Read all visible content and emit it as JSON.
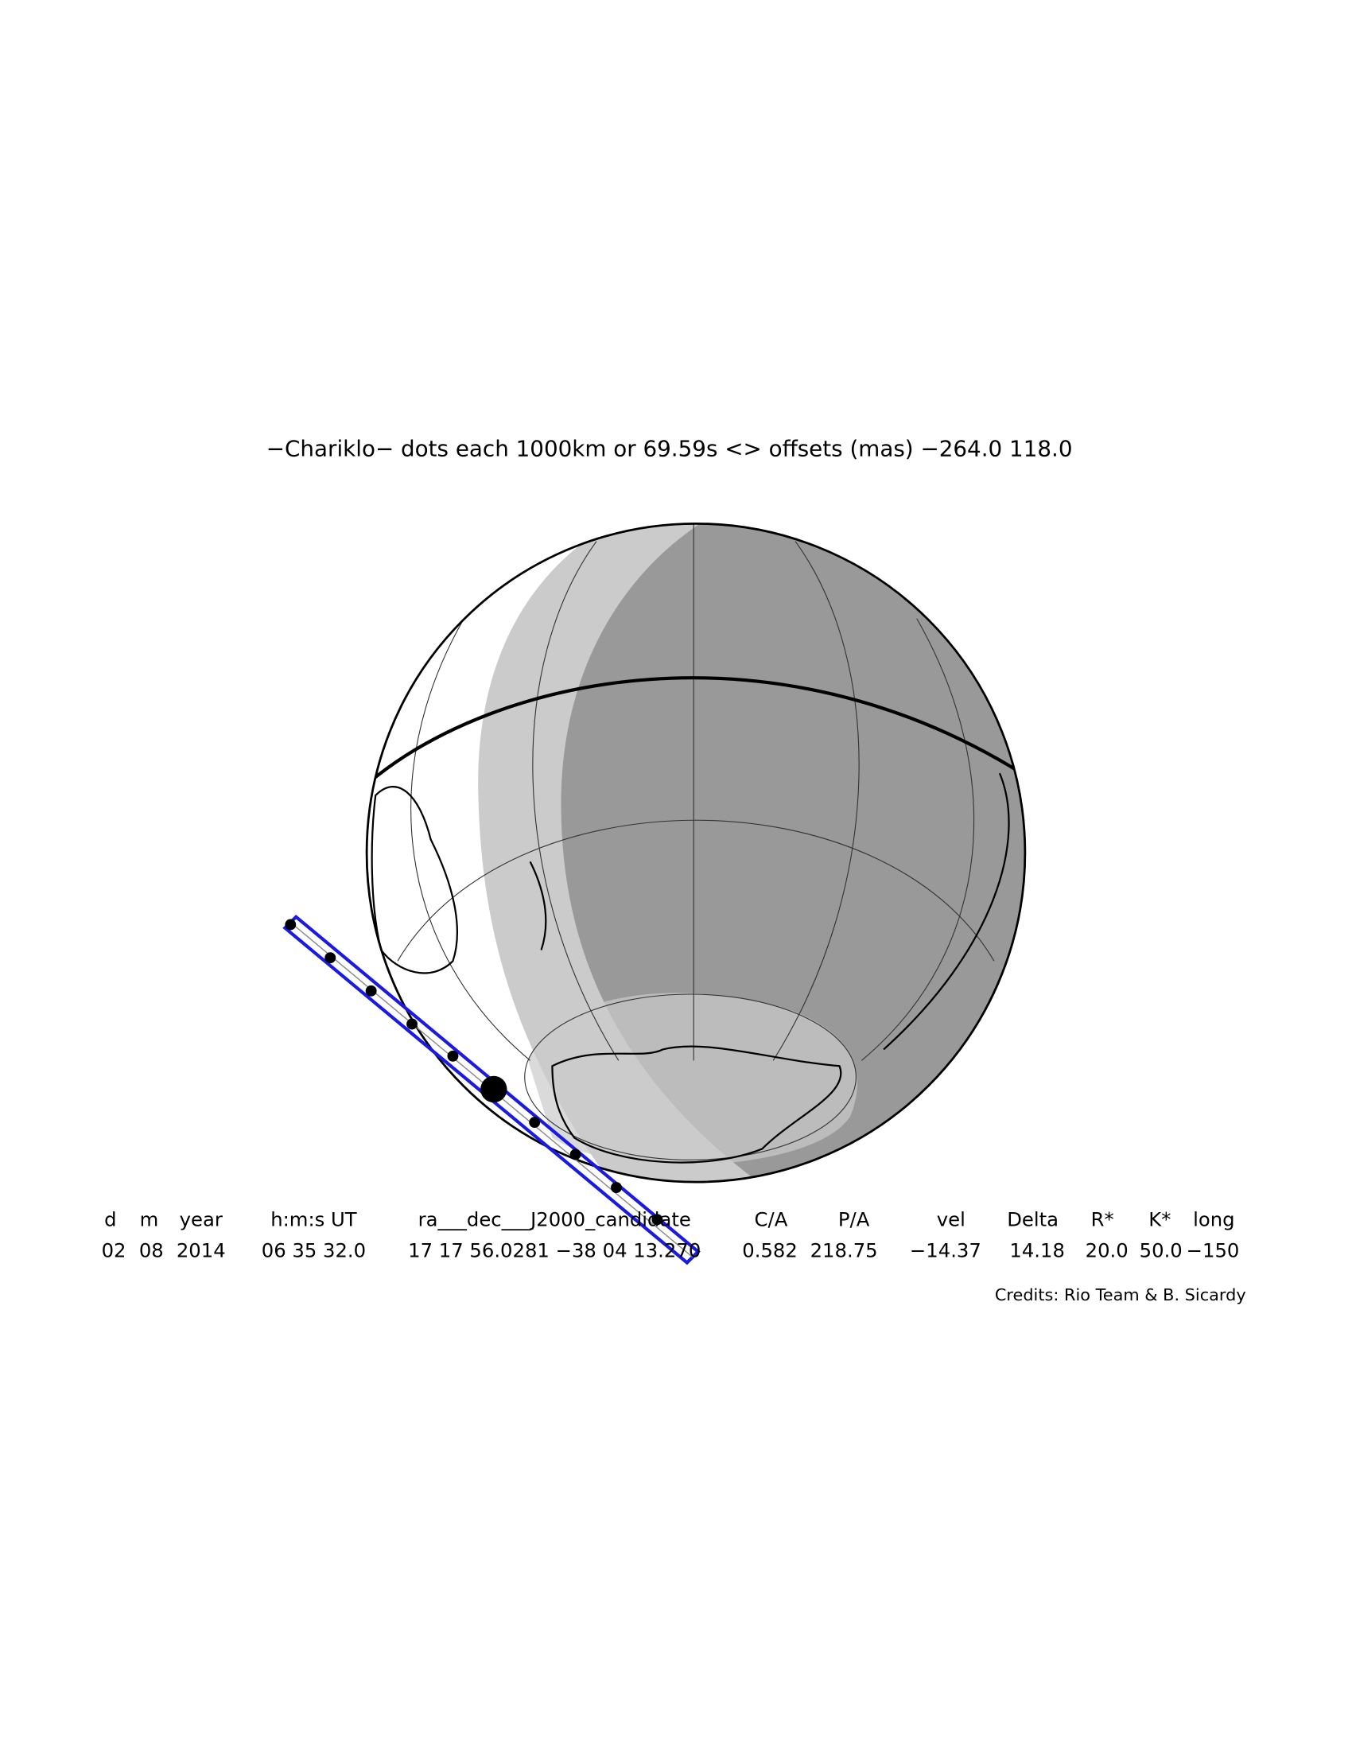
{
  "title": "−Chariklo− dots each 1000km or 69.59s <> offsets (mas) −264.0  118.0",
  "table": {
    "headers": [
      "d",
      "m",
      "year",
      "h:m:s UT",
      "ra___dec___J2000_candidate",
      "C/A",
      "P/A",
      "vel",
      "Delta",
      "R*",
      "K*",
      "long"
    ],
    "values": [
      "02",
      "08",
      "2014",
      "06 35 32.0",
      "17 17 56.0281 −38 04 13.270",
      "0.582",
      "218.75",
      "−14.37",
      "14.18",
      "20.0",
      "50.0",
      "−150"
    ]
  },
  "credits": "Credits: Rio Team & B. Sicardy"
}
